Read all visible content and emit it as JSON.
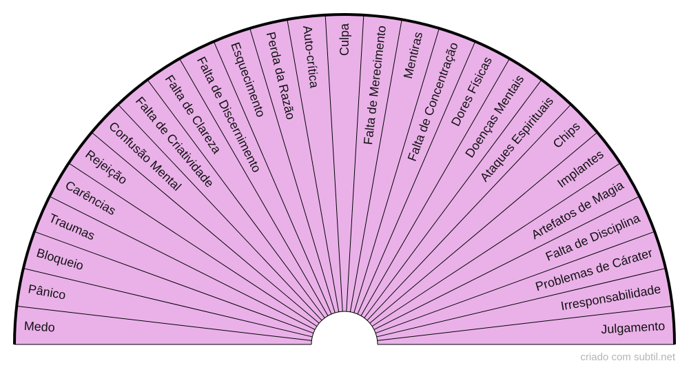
{
  "diagram": {
    "type": "radial-pendulum-chart",
    "fill_color": "#eab1e9",
    "line_color": "#000000",
    "sectors": [
      "Medo",
      "Pânico",
      "Bloqueio",
      "Traumas",
      "Carências",
      "Rejeição",
      "Confusão Mental",
      "Falta de Criatividade",
      "Falta de Clareza",
      "Falta de Discernimento",
      "Esquecimento",
      "Perda da Razão",
      "Auto-crítica",
      "Culpa",
      "Falta de Merecimento",
      "Mentiras",
      "Falta de Concentração",
      "Dores Físicas",
      "Doenças Mentais",
      "Ataques Espirituais",
      "Chips",
      "Implantes",
      "Artefatos de Magia",
      "Falta de Disciplina",
      "Problemas de Cárater",
      "Irresponsabilidade",
      "Julgamento"
    ]
  },
  "footer": {
    "credit": "criado com subtil.net"
  }
}
